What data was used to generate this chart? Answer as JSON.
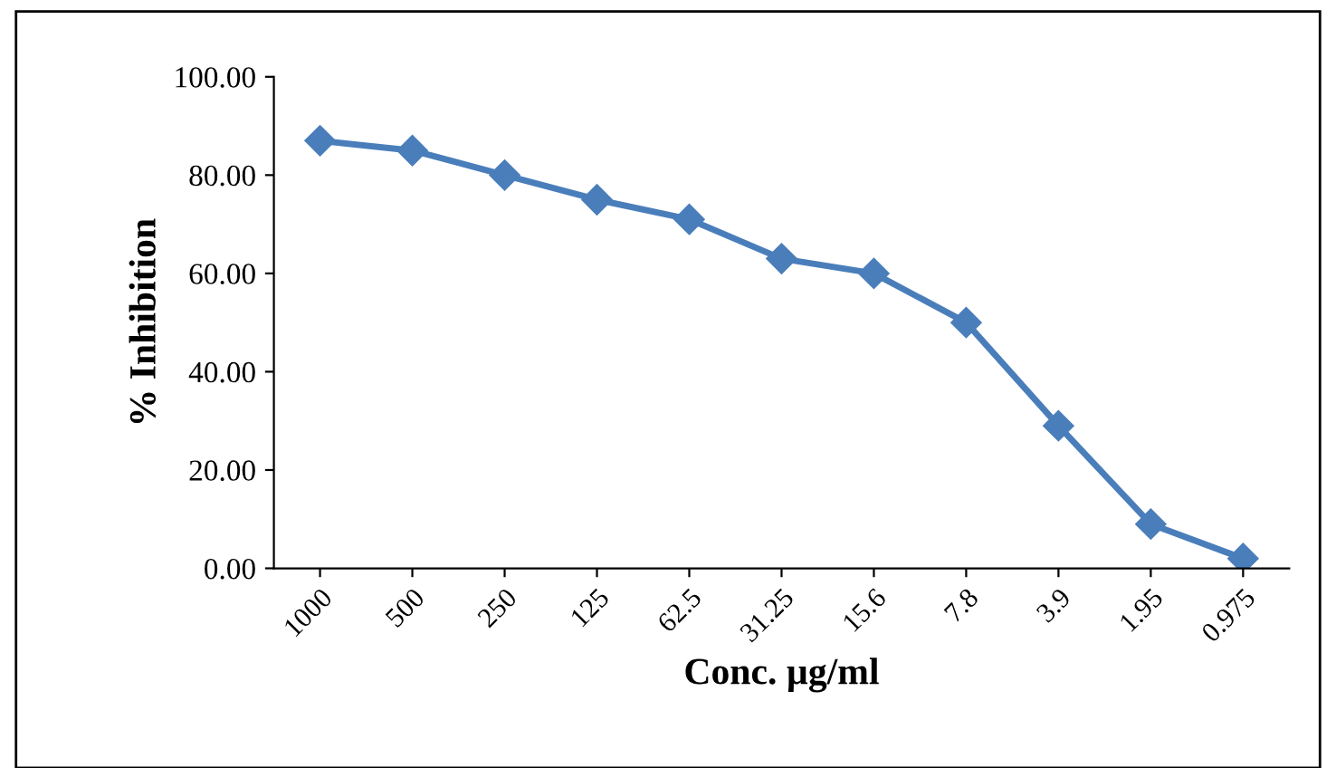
{
  "chart_data": {
    "type": "line",
    "xlabel": "Conc. µg/ml",
    "ylabel": "% Inhibition",
    "categories": [
      "1000",
      "500",
      "250",
      "125",
      "62.5",
      "31.25",
      "15.6",
      "7.8",
      "3.9",
      "1.95",
      "0.975"
    ],
    "series": [
      {
        "color": "#4a7ebb",
        "values": [
          87,
          85,
          80,
          75,
          71,
          63,
          60,
          50,
          29,
          9,
          2
        ]
      }
    ],
    "ylim": [
      0,
      100
    ],
    "yticks": [
      {
        "value": 0,
        "label": "0.00"
      },
      {
        "value": 20,
        "label": "20.00"
      },
      {
        "value": 40,
        "label": "40.00"
      },
      {
        "value": 60,
        "label": "60.00"
      },
      {
        "value": 80,
        "label": "80.00"
      },
      {
        "value": 100,
        "label": "100.00"
      }
    ],
    "marker": "diamond",
    "line_style": "solid",
    "grid": false
  }
}
